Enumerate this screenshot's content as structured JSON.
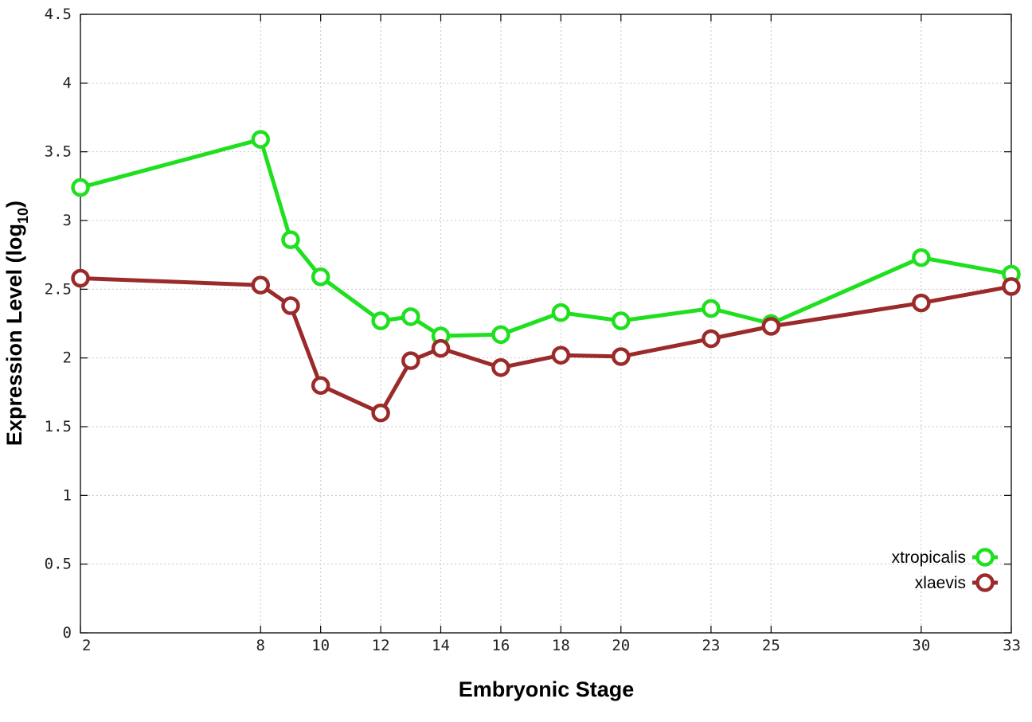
{
  "chart_data": {
    "type": "line",
    "xlabel": "Embryonic Stage",
    "ylabel_main": "Expression Level (log",
    "ylabel_sub": "10",
    "ylabel_close": ")",
    "xlim": [
      2,
      33
    ],
    "ylim": [
      0,
      4.5
    ],
    "x_ticks": [
      2,
      8,
      10,
      12,
      14,
      16,
      18,
      20,
      23,
      25,
      30,
      33
    ],
    "y_ticks": [
      0,
      0.5,
      1,
      1.5,
      2,
      2.5,
      3,
      3.5,
      4,
      4.5
    ],
    "y_tick_labels": [
      "0",
      "0.5",
      "1",
      "1.5",
      "2",
      "2.5",
      "3",
      "3.5",
      "4",
      "4.5"
    ],
    "grid": true,
    "legend_position": "bottom-right",
    "x": [
      2,
      8,
      9,
      10,
      12,
      13,
      14,
      16,
      18,
      20,
      23,
      25,
      30,
      33
    ],
    "series": [
      {
        "name": "xtropicalis",
        "color": "#1ee01e",
        "values": [
          3.24,
          3.59,
          2.86,
          2.59,
          2.27,
          2.3,
          2.16,
          2.17,
          2.33,
          2.27,
          2.36,
          2.25,
          2.73,
          2.61
        ]
      },
      {
        "name": "xlaevis",
        "color": "#9b2a2a",
        "values": [
          2.58,
          2.53,
          2.38,
          1.8,
          1.6,
          1.98,
          2.07,
          1.93,
          2.02,
          2.01,
          2.14,
          2.23,
          2.4,
          2.52
        ]
      }
    ]
  }
}
